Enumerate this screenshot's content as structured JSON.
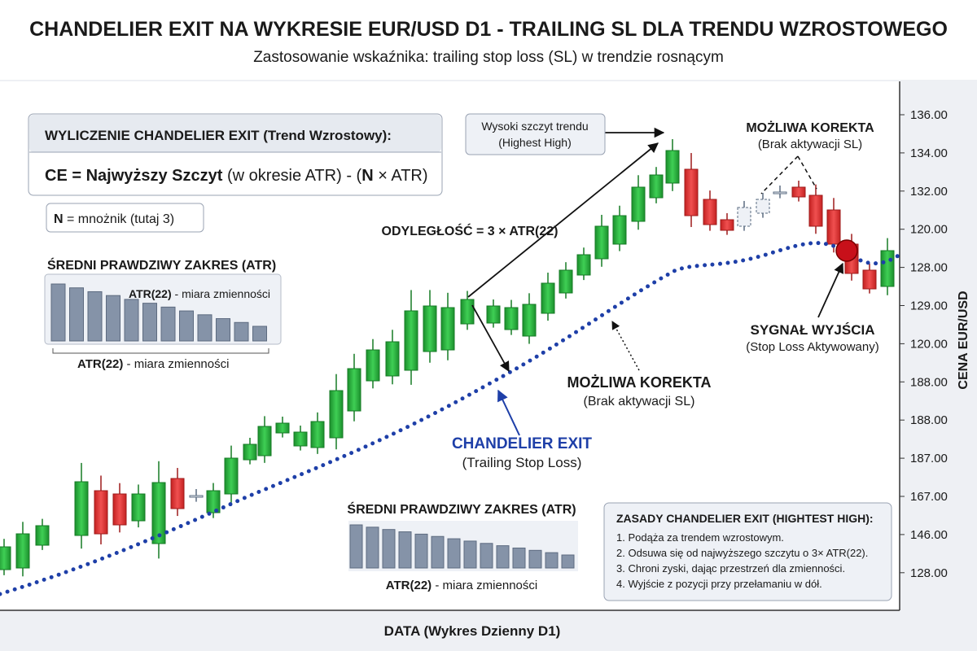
{
  "header": {
    "title": "CHANDELIER EXIT NA WYKRESIE EUR/USD D1 - TRAILING SL DLA TRENDU WZROSTOWEGO",
    "subtitle": "Zastosowanie wskaźnika: trailing stop loss (SL) w trendzie rosnącym"
  },
  "formula_box": {
    "heading": "WYLICZENIE CHANDELIER EXIT (Trend Wzrostowy):",
    "formula": {
      "bold1": "CE = Najwyższy Szczyt",
      "text1": " (w okresie ATR) - (",
      "bold2": "N",
      "text2": " × ATR)"
    },
    "note": {
      "bold": "N",
      "text": " = mnożnik (tutaj 3)"
    }
  },
  "atr_left": {
    "title": "ŚREDNI PRAWDZIWY ZAKRES (ATR)",
    "inner_label": {
      "bold": "ATR(22)",
      "text": " - miara zmienności"
    },
    "caption": {
      "bold": "ATR(22)",
      "text": " - miara zmienności"
    }
  },
  "atr_bottom": {
    "title": "ŚREDNI PRAWDZIWY ZAKRES (ATR)",
    "caption": {
      "bold": "ATR(22)",
      "text": " - miara zmienności"
    }
  },
  "annotations": {
    "highest_high": {
      "line1": "Wysoki szczyt trendu",
      "line2": "(Highest High)"
    },
    "distance": "ODYLEGŁOŚĆ = 3 × ATR(22)",
    "correction_top": {
      "title": "MOŻLIWA KOREKTA",
      "sub": "(Brak aktywacji SL)"
    },
    "exit_signal": {
      "title": "SYGNAŁ WYJŚCIA",
      "sub": "(Stop Loss Aktywowany)"
    },
    "correction_mid": {
      "title": "MOŻLIWA KOREKTA",
      "sub": "(Brak aktywacji SL)"
    },
    "chandelier": {
      "title": "CHANDELIER EXIT",
      "sub": "(Trailing Stop Loss)"
    }
  },
  "rules": {
    "title": "ZASADY CHANDELIER EXIT (HIGHTEST HIGH):",
    "items": [
      "1. Podąża za trendem wzrostowym.",
      "2. Odsuwa się od najwyższego szczytu o 3× ATR(22).",
      "3. Chroni zyski, dając przestrzeń dla zmienności.",
      "4. Wyjście z pozycji przy przełamaniu w dół."
    ]
  },
  "axis": {
    "y_title": "CENA EUR/USD",
    "y_labels": [
      "136.00",
      "134.00",
      "132.00",
      "120.00",
      "128.00",
      "129.00",
      "120.00",
      "188.00",
      "188.00",
      "187.00",
      "167.00",
      "146.00",
      "128.00"
    ],
    "x_title": "DATA (Wykres Dzienny D1)"
  }
}
